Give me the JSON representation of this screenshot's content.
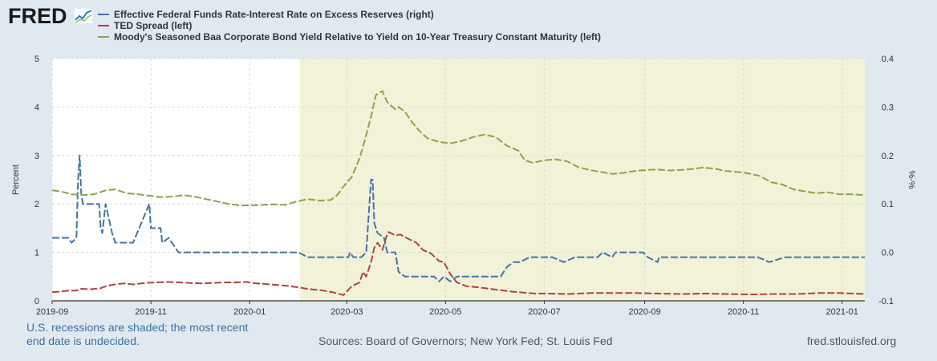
{
  "logo": {
    "text": "FRED",
    "icon": "chart-line-icon"
  },
  "legend": [
    {
      "label": "Effective Federal Funds Rate-Interest Rate on Excess Reserves (right)",
      "color": "#4572a7"
    },
    {
      "label": "TED Spread (left)",
      "color": "#aa4643"
    },
    {
      "label": "Moody's Seasoned Baa Corporate Bond Yield Relative to Yield on 10-Year Treasury Constant Maturity (left)",
      "color": "#89a54e"
    }
  ],
  "footer": {
    "recession_note_line1": "U.S. recessions are shaded; the most recent",
    "recession_note_line2": "end date is undecided.",
    "sources": "Sources: Board of Governors; New York Fed; St. Louis Fed",
    "site": "fred.stlouisfed.org"
  },
  "chart_data": {
    "type": "line",
    "title": "",
    "ylabel": "Percent",
    "y2label": "%-%",
    "xlim": [
      "2019-09-01",
      "2021-01-15"
    ],
    "ylim": [
      0,
      5
    ],
    "y2lim": [
      -0.1,
      0.4
    ],
    "yticks": [
      "0",
      "1",
      "2",
      "3",
      "4",
      "5"
    ],
    "y2ticks": [
      "-0.1",
      "0.0",
      "0.1",
      "0.2",
      "0.3",
      "0.4"
    ],
    "xticks": [
      {
        "date": "2019-09-01",
        "label": "2019-09"
      },
      {
        "date": "2019-11-01",
        "label": "2019-11"
      },
      {
        "date": "2020-01-01",
        "label": "2020-01"
      },
      {
        "date": "2020-03-01",
        "label": "2020-03"
      },
      {
        "date": "2020-05-01",
        "label": "2020-05"
      },
      {
        "date": "2020-07-01",
        "label": "2020-07"
      },
      {
        "date": "2020-09-01",
        "label": "2020-09"
      },
      {
        "date": "2020-11-01",
        "label": "2020-11"
      },
      {
        "date": "2021-01-01",
        "label": "2021-01"
      }
    ],
    "recession": {
      "start": "2020-02-01",
      "end": "2021-01-15"
    },
    "grid": true,
    "legend_position": "top",
    "series": [
      {
        "name": "Effective Federal Funds Rate-Interest Rate on Excess Reserves (right)",
        "axis": "right",
        "color": "#4572a7",
        "points": [
          [
            "2019-09-01",
            0.03
          ],
          [
            "2019-09-04",
            0.03
          ],
          [
            "2019-09-06",
            0.03
          ],
          [
            "2019-09-11",
            0.03
          ],
          [
            "2019-09-13",
            0.02
          ],
          [
            "2019-09-16",
            0.03
          ],
          [
            "2019-09-17",
            0.15
          ],
          [
            "2019-09-18",
            0.2
          ],
          [
            "2019-09-19",
            0.12
          ],
          [
            "2019-09-20",
            0.1
          ],
          [
            "2019-09-25",
            0.1
          ],
          [
            "2019-09-30",
            0.1
          ],
          [
            "2019-10-01",
            0.05
          ],
          [
            "2019-10-02",
            0.04
          ],
          [
            "2019-10-04",
            0.1
          ],
          [
            "2019-10-08",
            0.04
          ],
          [
            "2019-10-10",
            0.02
          ],
          [
            "2019-10-15",
            0.02
          ],
          [
            "2019-10-21",
            0.02
          ],
          [
            "2019-10-31",
            0.1
          ],
          [
            "2019-11-01",
            0.05
          ],
          [
            "2019-11-05",
            0.05
          ],
          [
            "2019-11-07",
            0.05
          ],
          [
            "2019-11-08",
            0.02
          ],
          [
            "2019-11-12",
            0.03
          ],
          [
            "2019-11-14",
            0.02
          ],
          [
            "2019-11-18",
            0.0
          ],
          [
            "2019-11-25",
            0.0
          ],
          [
            "2019-12-02",
            0.0
          ],
          [
            "2019-12-09",
            0.0
          ],
          [
            "2019-12-16",
            0.0
          ],
          [
            "2019-12-20",
            0.0
          ],
          [
            "2019-12-23",
            0.0
          ],
          [
            "2019-12-30",
            0.0
          ],
          [
            "2020-01-02",
            0.0
          ],
          [
            "2020-01-09",
            0.0
          ],
          [
            "2020-01-16",
            0.0
          ],
          [
            "2020-01-23",
            0.0
          ],
          [
            "2020-01-29",
            0.0
          ],
          [
            "2020-01-31",
            0.0
          ],
          [
            "2020-02-06",
            -0.01
          ],
          [
            "2020-02-13",
            -0.01
          ],
          [
            "2020-02-20",
            -0.01
          ],
          [
            "2020-02-27",
            -0.01
          ],
          [
            "2020-03-02",
            -0.01
          ],
          [
            "2020-03-03",
            0.0
          ],
          [
            "2020-03-05",
            -0.01
          ],
          [
            "2020-03-10",
            -0.01
          ],
          [
            "2020-03-13",
            0.0
          ],
          [
            "2020-03-16",
            0.15
          ],
          [
            "2020-03-17",
            0.15
          ],
          [
            "2020-03-18",
            0.06
          ],
          [
            "2020-03-20",
            0.04
          ],
          [
            "2020-03-24",
            0.03
          ],
          [
            "2020-03-26",
            0.0
          ],
          [
            "2020-03-31",
            0.0
          ],
          [
            "2020-04-02",
            -0.04
          ],
          [
            "2020-04-06",
            -0.05
          ],
          [
            "2020-04-15",
            -0.05
          ],
          [
            "2020-04-24",
            -0.05
          ],
          [
            "2020-04-27",
            -0.06
          ],
          [
            "2020-04-30",
            -0.05
          ],
          [
            "2020-05-04",
            -0.06
          ],
          [
            "2020-05-08",
            -0.05
          ],
          [
            "2020-05-20",
            -0.05
          ],
          [
            "2020-05-29",
            -0.05
          ],
          [
            "2020-06-04",
            -0.05
          ],
          [
            "2020-06-08",
            -0.03
          ],
          [
            "2020-06-12",
            -0.02
          ],
          [
            "2020-06-16",
            -0.02
          ],
          [
            "2020-06-22",
            -0.01
          ],
          [
            "2020-06-30",
            -0.01
          ],
          [
            "2020-07-06",
            -0.01
          ],
          [
            "2020-07-13",
            -0.02
          ],
          [
            "2020-07-20",
            -0.01
          ],
          [
            "2020-07-27",
            -0.01
          ],
          [
            "2020-08-03",
            -0.01
          ],
          [
            "2020-08-06",
            0.0
          ],
          [
            "2020-08-12",
            -0.01
          ],
          [
            "2020-08-14",
            0.0
          ],
          [
            "2020-08-20",
            0.0
          ],
          [
            "2020-08-31",
            0.0
          ],
          [
            "2020-09-03",
            -0.01
          ],
          [
            "2020-09-09",
            -0.02
          ],
          [
            "2020-09-10",
            -0.01
          ],
          [
            "2020-09-21",
            -0.01
          ],
          [
            "2020-10-05",
            -0.01
          ],
          [
            "2020-10-20",
            -0.01
          ],
          [
            "2020-11-02",
            -0.01
          ],
          [
            "2020-11-10",
            -0.01
          ],
          [
            "2020-11-17",
            -0.02
          ],
          [
            "2020-11-27",
            -0.01
          ],
          [
            "2020-12-04",
            -0.01
          ],
          [
            "2020-12-18",
            -0.01
          ],
          [
            "2020-12-31",
            -0.01
          ],
          [
            "2021-01-08",
            -0.01
          ],
          [
            "2021-01-15",
            -0.01
          ]
        ]
      },
      {
        "name": "TED Spread (left)",
        "axis": "left",
        "color": "#aa4643",
        "points": [
          [
            "2019-09-01",
            0.18
          ],
          [
            "2019-09-06",
            0.19
          ],
          [
            "2019-09-11",
            0.21
          ],
          [
            "2019-09-16",
            0.21
          ],
          [
            "2019-09-18",
            0.25
          ],
          [
            "2019-09-25",
            0.24
          ],
          [
            "2019-10-01",
            0.26
          ],
          [
            "2019-10-04",
            0.3
          ],
          [
            "2019-10-08",
            0.33
          ],
          [
            "2019-10-15",
            0.36
          ],
          [
            "2019-10-21",
            0.34
          ],
          [
            "2019-10-29",
            0.37
          ],
          [
            "2019-11-04",
            0.38
          ],
          [
            "2019-11-11",
            0.39
          ],
          [
            "2019-11-18",
            0.38
          ],
          [
            "2019-11-25",
            0.37
          ],
          [
            "2019-12-02",
            0.36
          ],
          [
            "2019-12-09",
            0.37
          ],
          [
            "2019-12-16",
            0.38
          ],
          [
            "2019-12-23",
            0.38
          ],
          [
            "2019-12-30",
            0.39
          ],
          [
            "2020-01-02",
            0.37
          ],
          [
            "2020-01-10",
            0.35
          ],
          [
            "2020-01-17",
            0.33
          ],
          [
            "2020-01-24",
            0.31
          ],
          [
            "2020-01-31",
            0.28
          ],
          [
            "2020-02-07",
            0.24
          ],
          [
            "2020-02-14",
            0.22
          ],
          [
            "2020-02-21",
            0.18
          ],
          [
            "2020-02-28",
            0.12
          ],
          [
            "2020-03-04",
            0.3
          ],
          [
            "2020-03-09",
            0.38
          ],
          [
            "2020-03-11",
            0.6
          ],
          [
            "2020-03-13",
            0.5
          ],
          [
            "2020-03-16",
            0.8
          ],
          [
            "2020-03-18",
            1.1
          ],
          [
            "2020-03-20",
            1.2
          ],
          [
            "2020-03-23",
            1.05
          ],
          [
            "2020-03-26",
            1.38
          ],
          [
            "2020-03-27",
            1.42
          ],
          [
            "2020-03-31",
            1.35
          ],
          [
            "2020-04-03",
            1.37
          ],
          [
            "2020-04-08",
            1.28
          ],
          [
            "2020-04-13",
            1.2
          ],
          [
            "2020-04-17",
            1.05
          ],
          [
            "2020-04-22",
            0.98
          ],
          [
            "2020-04-27",
            0.82
          ],
          [
            "2020-04-30",
            0.8
          ],
          [
            "2020-05-04",
            0.55
          ],
          [
            "2020-05-08",
            0.38
          ],
          [
            "2020-05-14",
            0.3
          ],
          [
            "2020-05-21",
            0.28
          ],
          [
            "2020-05-28",
            0.25
          ],
          [
            "2020-06-04",
            0.22
          ],
          [
            "2020-06-11",
            0.19
          ],
          [
            "2020-06-18",
            0.17
          ],
          [
            "2020-06-25",
            0.15
          ],
          [
            "2020-07-02",
            0.15
          ],
          [
            "2020-07-16",
            0.14
          ],
          [
            "2020-07-30",
            0.16
          ],
          [
            "2020-08-13",
            0.16
          ],
          [
            "2020-08-27",
            0.16
          ],
          [
            "2020-09-10",
            0.15
          ],
          [
            "2020-09-24",
            0.14
          ],
          [
            "2020-10-08",
            0.15
          ],
          [
            "2020-10-22",
            0.14
          ],
          [
            "2020-11-05",
            0.13
          ],
          [
            "2020-11-19",
            0.14
          ],
          [
            "2020-12-03",
            0.14
          ],
          [
            "2020-12-17",
            0.16
          ],
          [
            "2020-12-31",
            0.16
          ],
          [
            "2021-01-08",
            0.15
          ],
          [
            "2021-01-15",
            0.14
          ]
        ]
      },
      {
        "name": "Moody's Seasoned Baa Corporate Bond Yield Relative to Yield on 10-Year Treasury Constant Maturity (left)",
        "axis": "left",
        "color": "#89a54e",
        "points": [
          [
            "2019-09-01",
            2.28
          ],
          [
            "2019-09-06",
            2.26
          ],
          [
            "2019-09-13",
            2.2
          ],
          [
            "2019-09-20",
            2.18
          ],
          [
            "2019-09-27",
            2.2
          ],
          [
            "2019-10-04",
            2.28
          ],
          [
            "2019-10-10",
            2.3
          ],
          [
            "2019-10-17",
            2.22
          ],
          [
            "2019-10-24",
            2.2
          ],
          [
            "2019-10-31",
            2.17
          ],
          [
            "2019-11-07",
            2.14
          ],
          [
            "2019-11-14",
            2.15
          ],
          [
            "2019-11-21",
            2.18
          ],
          [
            "2019-11-28",
            2.15
          ],
          [
            "2019-12-05",
            2.1
          ],
          [
            "2019-12-12",
            2.05
          ],
          [
            "2019-12-19",
            2.0
          ],
          [
            "2019-12-26",
            1.97
          ],
          [
            "2020-01-02",
            1.97
          ],
          [
            "2020-01-09",
            1.98
          ],
          [
            "2020-01-16",
            1.99
          ],
          [
            "2020-01-23",
            1.98
          ],
          [
            "2020-01-30",
            2.05
          ],
          [
            "2020-02-06",
            2.1
          ],
          [
            "2020-02-13",
            2.07
          ],
          [
            "2020-02-20",
            2.08
          ],
          [
            "2020-02-24",
            2.18
          ],
          [
            "2020-02-27",
            2.32
          ],
          [
            "2020-03-02",
            2.48
          ],
          [
            "2020-03-04",
            2.55
          ],
          [
            "2020-03-09",
            2.95
          ],
          [
            "2020-03-12",
            3.3
          ],
          [
            "2020-03-16",
            3.8
          ],
          [
            "2020-03-19",
            4.25
          ],
          [
            "2020-03-23",
            4.33
          ],
          [
            "2020-03-26",
            4.1
          ],
          [
            "2020-03-31",
            3.95
          ],
          [
            "2020-04-02",
            4.0
          ],
          [
            "2020-04-06",
            3.9
          ],
          [
            "2020-04-10",
            3.7
          ],
          [
            "2020-04-15",
            3.5
          ],
          [
            "2020-04-20",
            3.35
          ],
          [
            "2020-04-27",
            3.28
          ],
          [
            "2020-05-04",
            3.25
          ],
          [
            "2020-05-11",
            3.3
          ],
          [
            "2020-05-18",
            3.38
          ],
          [
            "2020-05-25",
            3.43
          ],
          [
            "2020-06-01",
            3.38
          ],
          [
            "2020-06-08",
            3.2
          ],
          [
            "2020-06-15",
            3.1
          ],
          [
            "2020-06-19",
            2.9
          ],
          [
            "2020-06-24",
            2.85
          ],
          [
            "2020-07-01",
            2.9
          ],
          [
            "2020-07-08",
            2.92
          ],
          [
            "2020-07-15",
            2.88
          ],
          [
            "2020-07-22",
            2.76
          ],
          [
            "2020-07-29",
            2.7
          ],
          [
            "2020-08-05",
            2.66
          ],
          [
            "2020-08-12",
            2.62
          ],
          [
            "2020-08-19",
            2.64
          ],
          [
            "2020-08-26",
            2.68
          ],
          [
            "2020-09-02",
            2.7
          ],
          [
            "2020-09-09",
            2.71
          ],
          [
            "2020-09-16",
            2.69
          ],
          [
            "2020-09-23",
            2.7
          ],
          [
            "2020-09-30",
            2.72
          ],
          [
            "2020-10-07",
            2.75
          ],
          [
            "2020-10-14",
            2.73
          ],
          [
            "2020-10-21",
            2.68
          ],
          [
            "2020-10-28",
            2.66
          ],
          [
            "2020-11-04",
            2.63
          ],
          [
            "2020-11-11",
            2.58
          ],
          [
            "2020-11-18",
            2.45
          ],
          [
            "2020-11-25",
            2.4
          ],
          [
            "2020-12-02",
            2.3
          ],
          [
            "2020-12-09",
            2.26
          ],
          [
            "2020-12-16",
            2.22
          ],
          [
            "2020-12-23",
            2.24
          ],
          [
            "2020-12-30",
            2.2
          ],
          [
            "2021-01-06",
            2.2
          ],
          [
            "2021-01-15",
            2.18
          ]
        ]
      }
    ]
  }
}
